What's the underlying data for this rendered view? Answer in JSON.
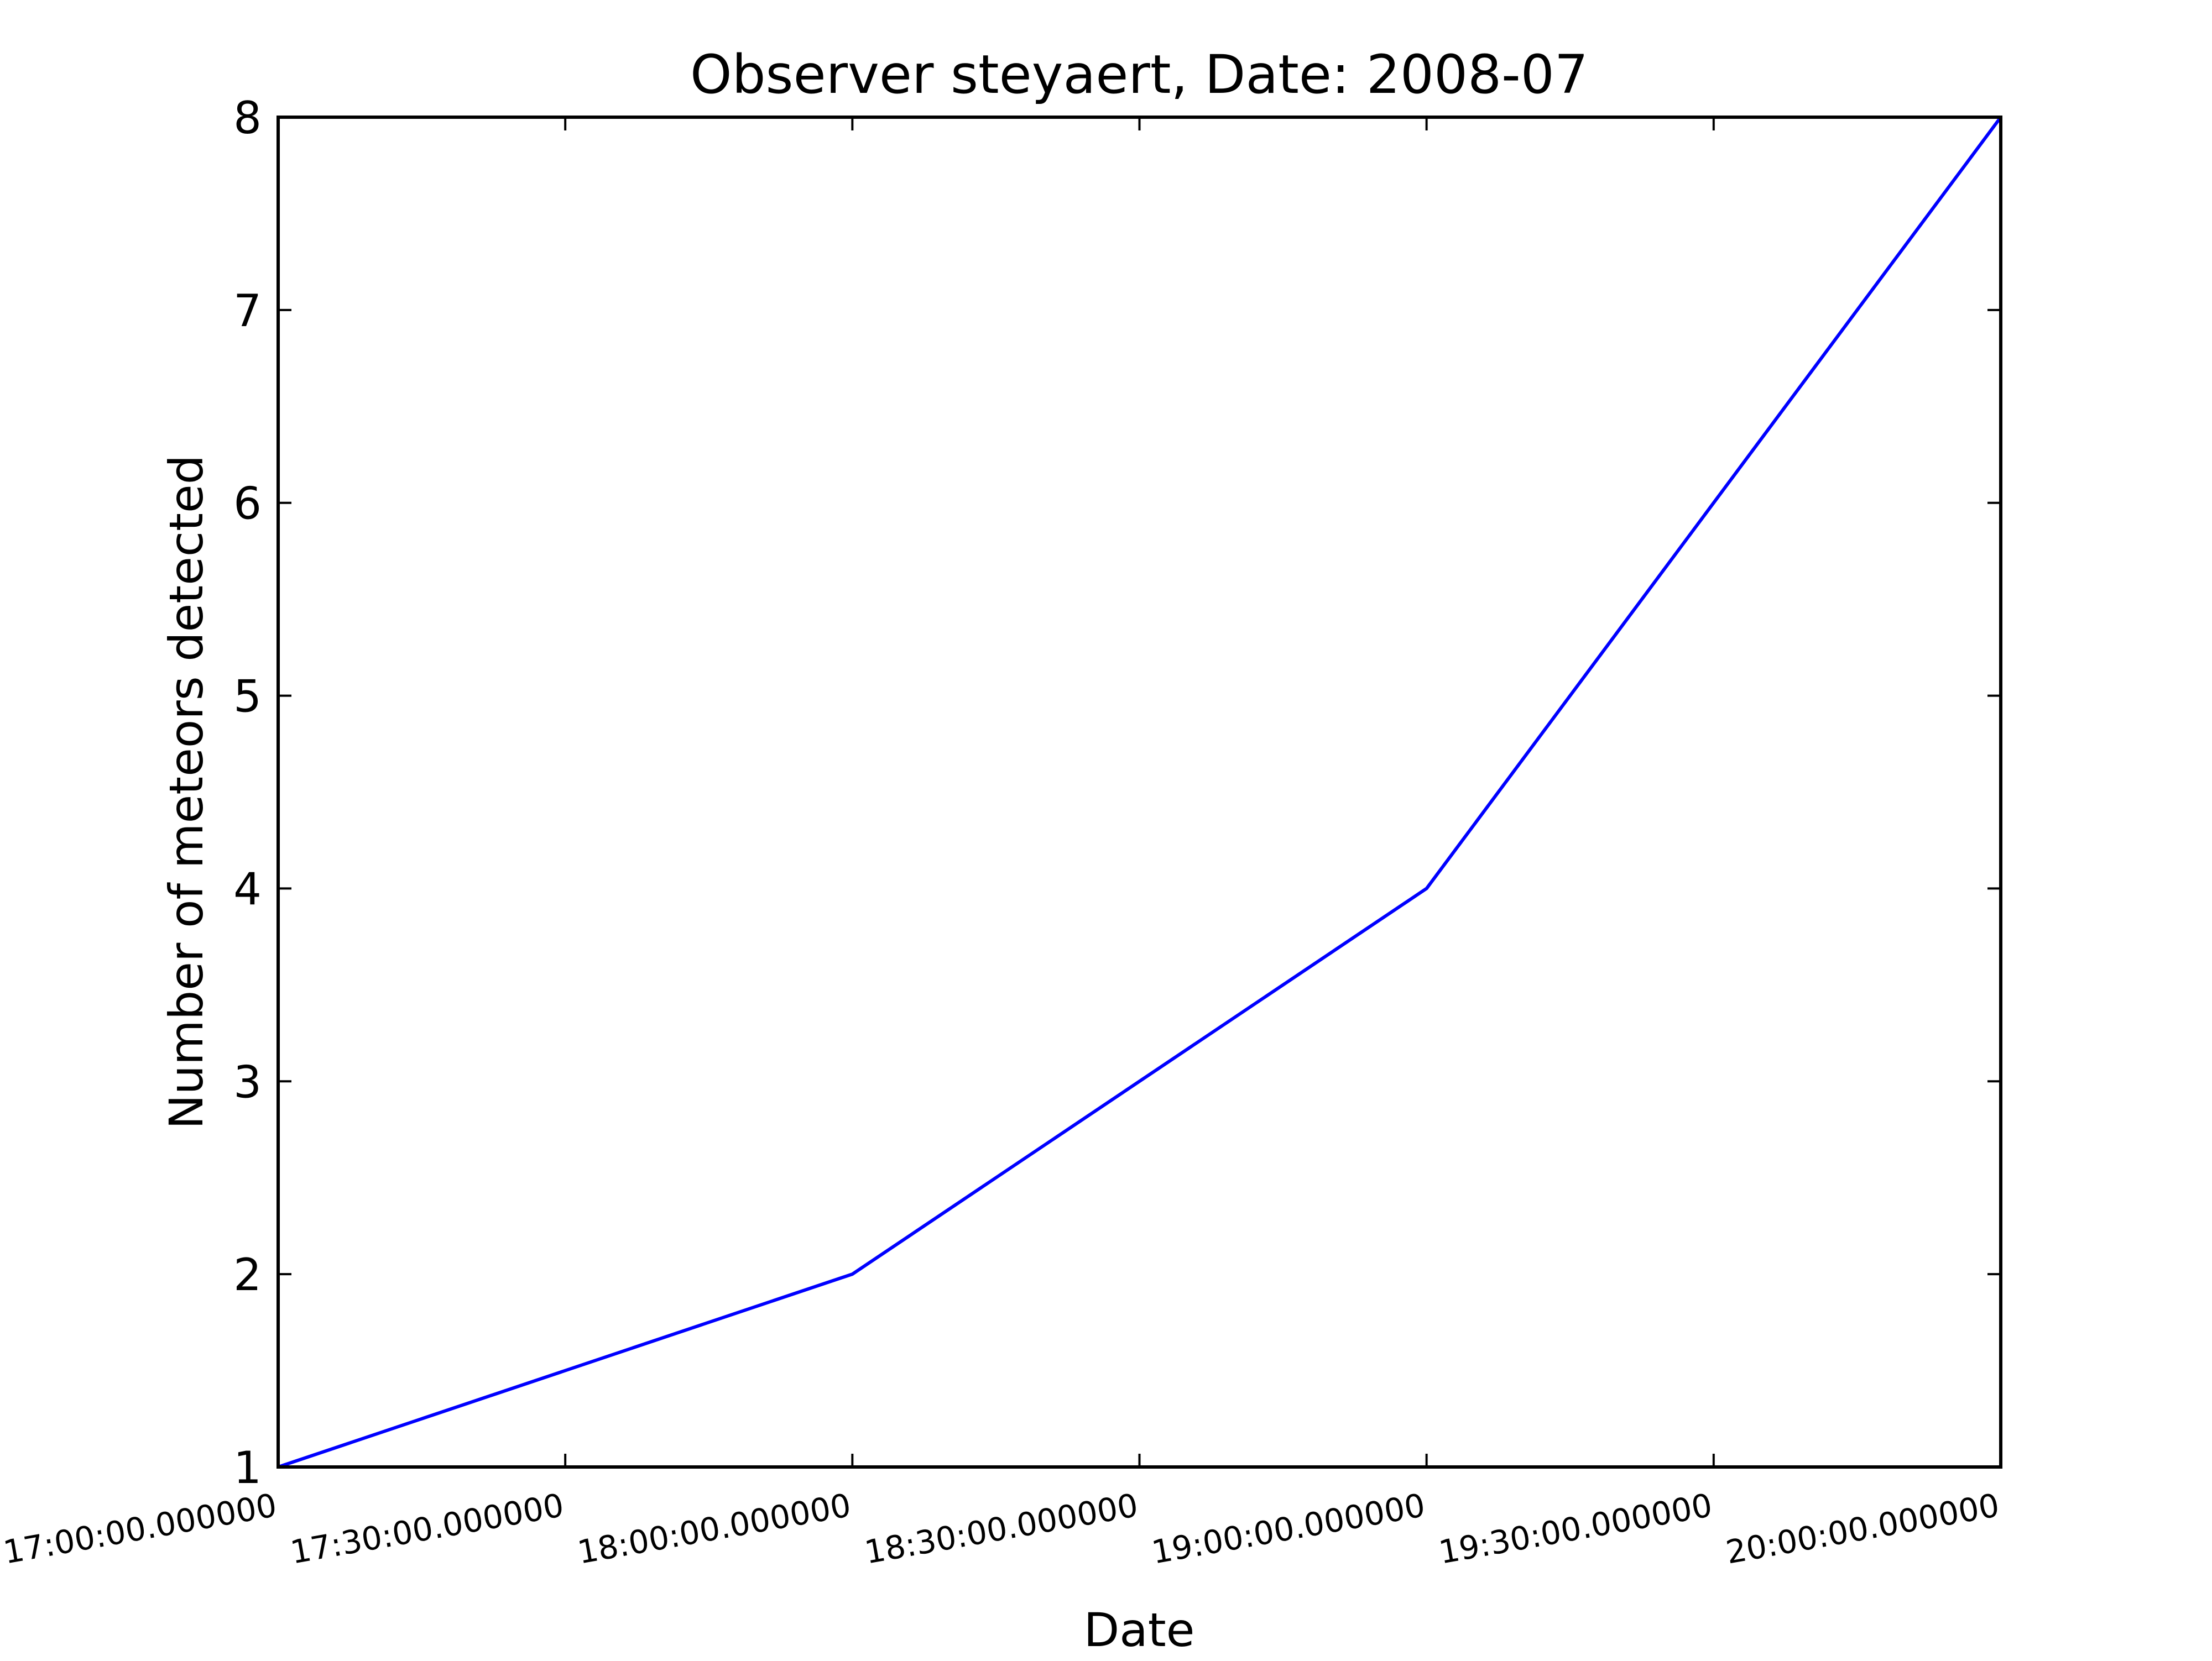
{
  "chart_data": {
    "type": "line",
    "title": "Observer steyaert, Date: 2008-07",
    "xlabel": "Date",
    "ylabel": "Number of meteors detected",
    "x": [
      "17:00",
      "18:00",
      "19:00",
      "19:30",
      "20:00"
    ],
    "x_tick_labels": [
      "17:00:00.000000",
      "17:30:00.000000",
      "18:00:00.000000",
      "18:30:00.000000",
      "19:00:00.000000",
      "19:30:00.000000",
      "20:00:00.000000"
    ],
    "y_tick_labels": [
      "1",
      "2",
      "3",
      "4",
      "5",
      "6",
      "7",
      "8"
    ],
    "series": [
      {
        "values": [
          1,
          2,
          4,
          6,
          8
        ],
        "color": "#0000ff"
      }
    ],
    "xlim": [
      "17:00",
      "20:00"
    ],
    "ylim": [
      1,
      8
    ],
    "grid": false,
    "legend": "none"
  }
}
